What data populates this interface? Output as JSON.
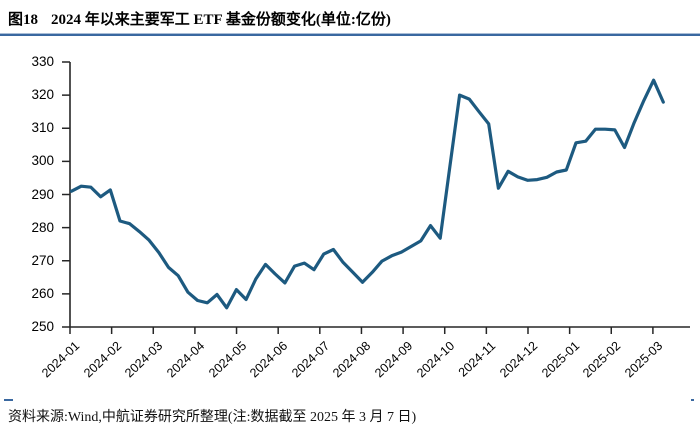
{
  "header": {
    "figure_label": "图18",
    "title": "2024 年以来主要军工 ETF 基金份额变化(单位:亿份)"
  },
  "footer": {
    "source": "资料来源:Wind,中航证券研究所整理(注:数据截至 2025 年 3 月 7 日)"
  },
  "colors": {
    "line": "#1d5a80",
    "axis": "#262626",
    "rule_dark": "#3a68a0",
    "rule_light": "#a9bdd6",
    "text": "#000000"
  },
  "chart_data": {
    "type": "line",
    "title": "2024 年以来主要军工 ETF 基金份额变化",
    "unit": "亿份",
    "frequency": "weekly",
    "grid": false,
    "legend": "none",
    "ylim": [
      250,
      330
    ],
    "y_ticks": [
      250,
      260,
      270,
      280,
      290,
      300,
      310,
      320,
      330
    ],
    "x_tick_labels": [
      "2024-01",
      "2024-02",
      "2024-03",
      "2024-04",
      "2024-05",
      "2024-06",
      "2024-07",
      "2024-08",
      "2024-09",
      "2024-10",
      "2024-11",
      "2024-12",
      "2025-01",
      "2025-02",
      "2025-03"
    ],
    "values": [
      291.0,
      292.5,
      292.2,
      289.3,
      291.4,
      282.0,
      281.2,
      278.8,
      276.2,
      272.5,
      268.0,
      265.5,
      260.5,
      258.0,
      257.3,
      259.8,
      255.8,
      261.3,
      258.3,
      264.5,
      268.9,
      266.0,
      263.3,
      268.4,
      269.3,
      267.3,
      272.0,
      273.4,
      269.5,
      266.5,
      263.5,
      266.5,
      269.9,
      271.5,
      272.6,
      274.3,
      276.0,
      280.6,
      276.8,
      298.5,
      320.0,
      318.8,
      315.0,
      311.3,
      291.9,
      297.0,
      295.3,
      294.3,
      294.5,
      295.2,
      296.8,
      297.4,
      305.6,
      306.1,
      309.7,
      309.7,
      309.5,
      304.2,
      311.7,
      318.4,
      324.5,
      317.9
    ]
  }
}
